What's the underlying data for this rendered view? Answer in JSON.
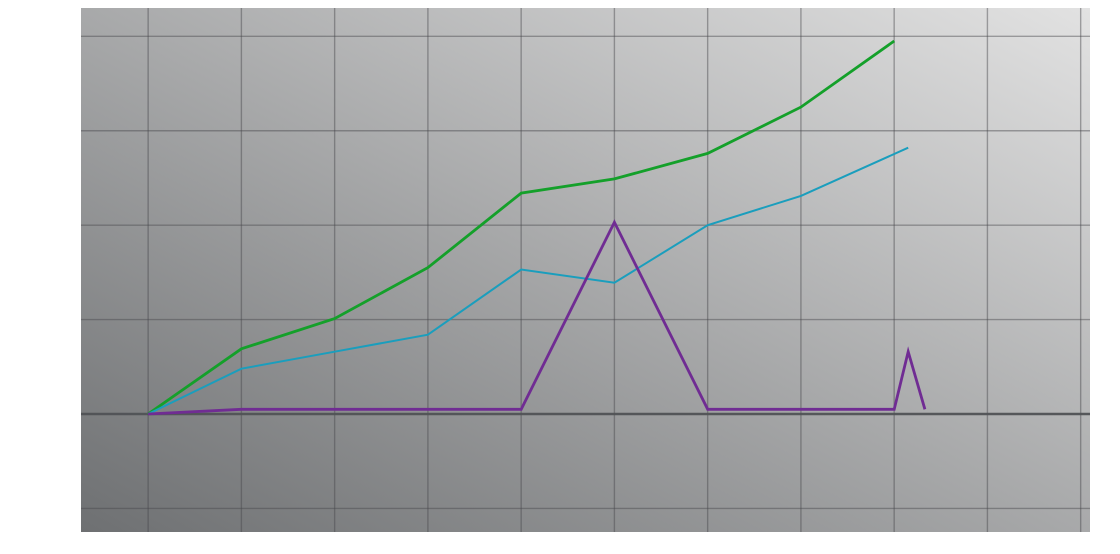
{
  "chart_data": {
    "type": "line",
    "title": "",
    "xlabel": "",
    "ylabel": "",
    "grid": true,
    "xlim": [
      -0.72,
      10.1
    ],
    "ylim": [
      -1.25,
      4.3
    ],
    "x_gridlines": [
      0,
      1,
      2,
      3,
      4,
      5,
      6,
      7,
      8,
      9,
      10
    ],
    "y_gridlines": [
      -1,
      0,
      1,
      2,
      3,
      4
    ],
    "background": {
      "dark": "#6e7072",
      "light": "#e2e2e2"
    },
    "series": [
      {
        "color": "#14a02a",
        "points": [
          [
            0,
            0
          ],
          [
            1,
            0.69
          ],
          [
            2,
            1.01
          ],
          [
            3,
            1.55
          ],
          [
            4,
            2.34
          ],
          [
            5,
            2.49
          ],
          [
            6,
            2.76
          ],
          [
            7,
            3.25
          ],
          [
            8,
            3.95
          ]
        ]
      },
      {
        "color": "#1a9ebd",
        "points": [
          [
            0,
            0
          ],
          [
            1,
            0.48
          ],
          [
            2,
            0.66
          ],
          [
            3,
            0.84
          ],
          [
            4,
            1.53
          ],
          [
            5,
            1.39
          ],
          [
            6,
            2.0
          ],
          [
            7,
            2.31
          ],
          [
            8.15,
            2.82
          ]
        ]
      },
      {
        "color": "#702c93",
        "points": [
          [
            0,
            0
          ],
          [
            1,
            0.05
          ],
          [
            2,
            0.05
          ],
          [
            3,
            0.05
          ],
          [
            4,
            0.05
          ],
          [
            5,
            2.03
          ],
          [
            6,
            0.05
          ],
          [
            7,
            0.05
          ],
          [
            8,
            0.05
          ],
          [
            8.15,
            0.66
          ],
          [
            8.33,
            0.05
          ]
        ]
      }
    ]
  }
}
